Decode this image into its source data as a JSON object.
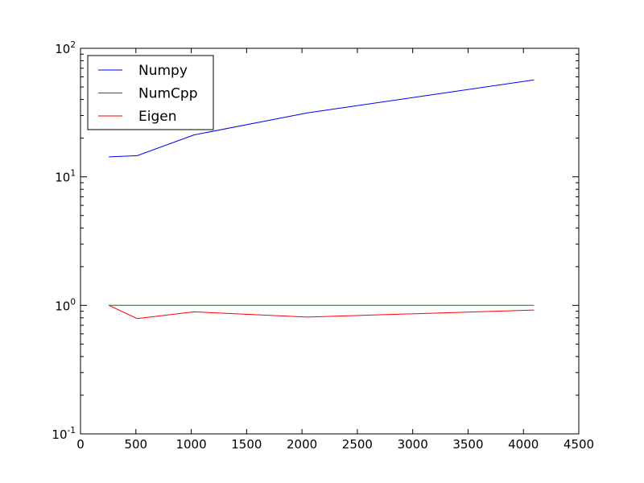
{
  "chart_data": {
    "type": "line",
    "title": "",
    "xlabel": "",
    "ylabel": "",
    "xlim": [
      0,
      4500
    ],
    "ylim": [
      0.1,
      100
    ],
    "yscale": "log",
    "grid": false,
    "legend_position": "top-left",
    "x_ticks": [
      {
        "value": 0,
        "label": "0"
      },
      {
        "value": 500,
        "label": "500"
      },
      {
        "value": 1000,
        "label": "1000"
      },
      {
        "value": 1500,
        "label": "1500"
      },
      {
        "value": 2000,
        "label": "2000"
      },
      {
        "value": 2500,
        "label": "2500"
      },
      {
        "value": 3000,
        "label": "3000"
      },
      {
        "value": 3500,
        "label": "3500"
      },
      {
        "value": 4000,
        "label": "4000"
      },
      {
        "value": 4500,
        "label": "4500"
      }
    ],
    "y_ticks": [
      {
        "value": 0.1,
        "base": "10",
        "exp": "-1"
      },
      {
        "value": 1,
        "base": "10",
        "exp": "0"
      },
      {
        "value": 10,
        "base": "10",
        "exp": "1"
      },
      {
        "value": 100,
        "base": "10",
        "exp": "2"
      }
    ],
    "x": [
      256,
      512,
      1024,
      2048,
      4096
    ],
    "series": [
      {
        "name": "Numpy",
        "color": "#0000ff",
        "values": [
          14.3,
          14.6,
          21.2,
          31.4,
          56.8
        ]
      },
      {
        "name": "NumCpp",
        "color": "#008000",
        "values": [
          1.0,
          1.0,
          1.0,
          1.0,
          1.0
        ]
      },
      {
        "name": "Eigen",
        "color": "#ff0000",
        "values": [
          1.0,
          0.79,
          0.89,
          0.81,
          0.92
        ]
      }
    ]
  }
}
